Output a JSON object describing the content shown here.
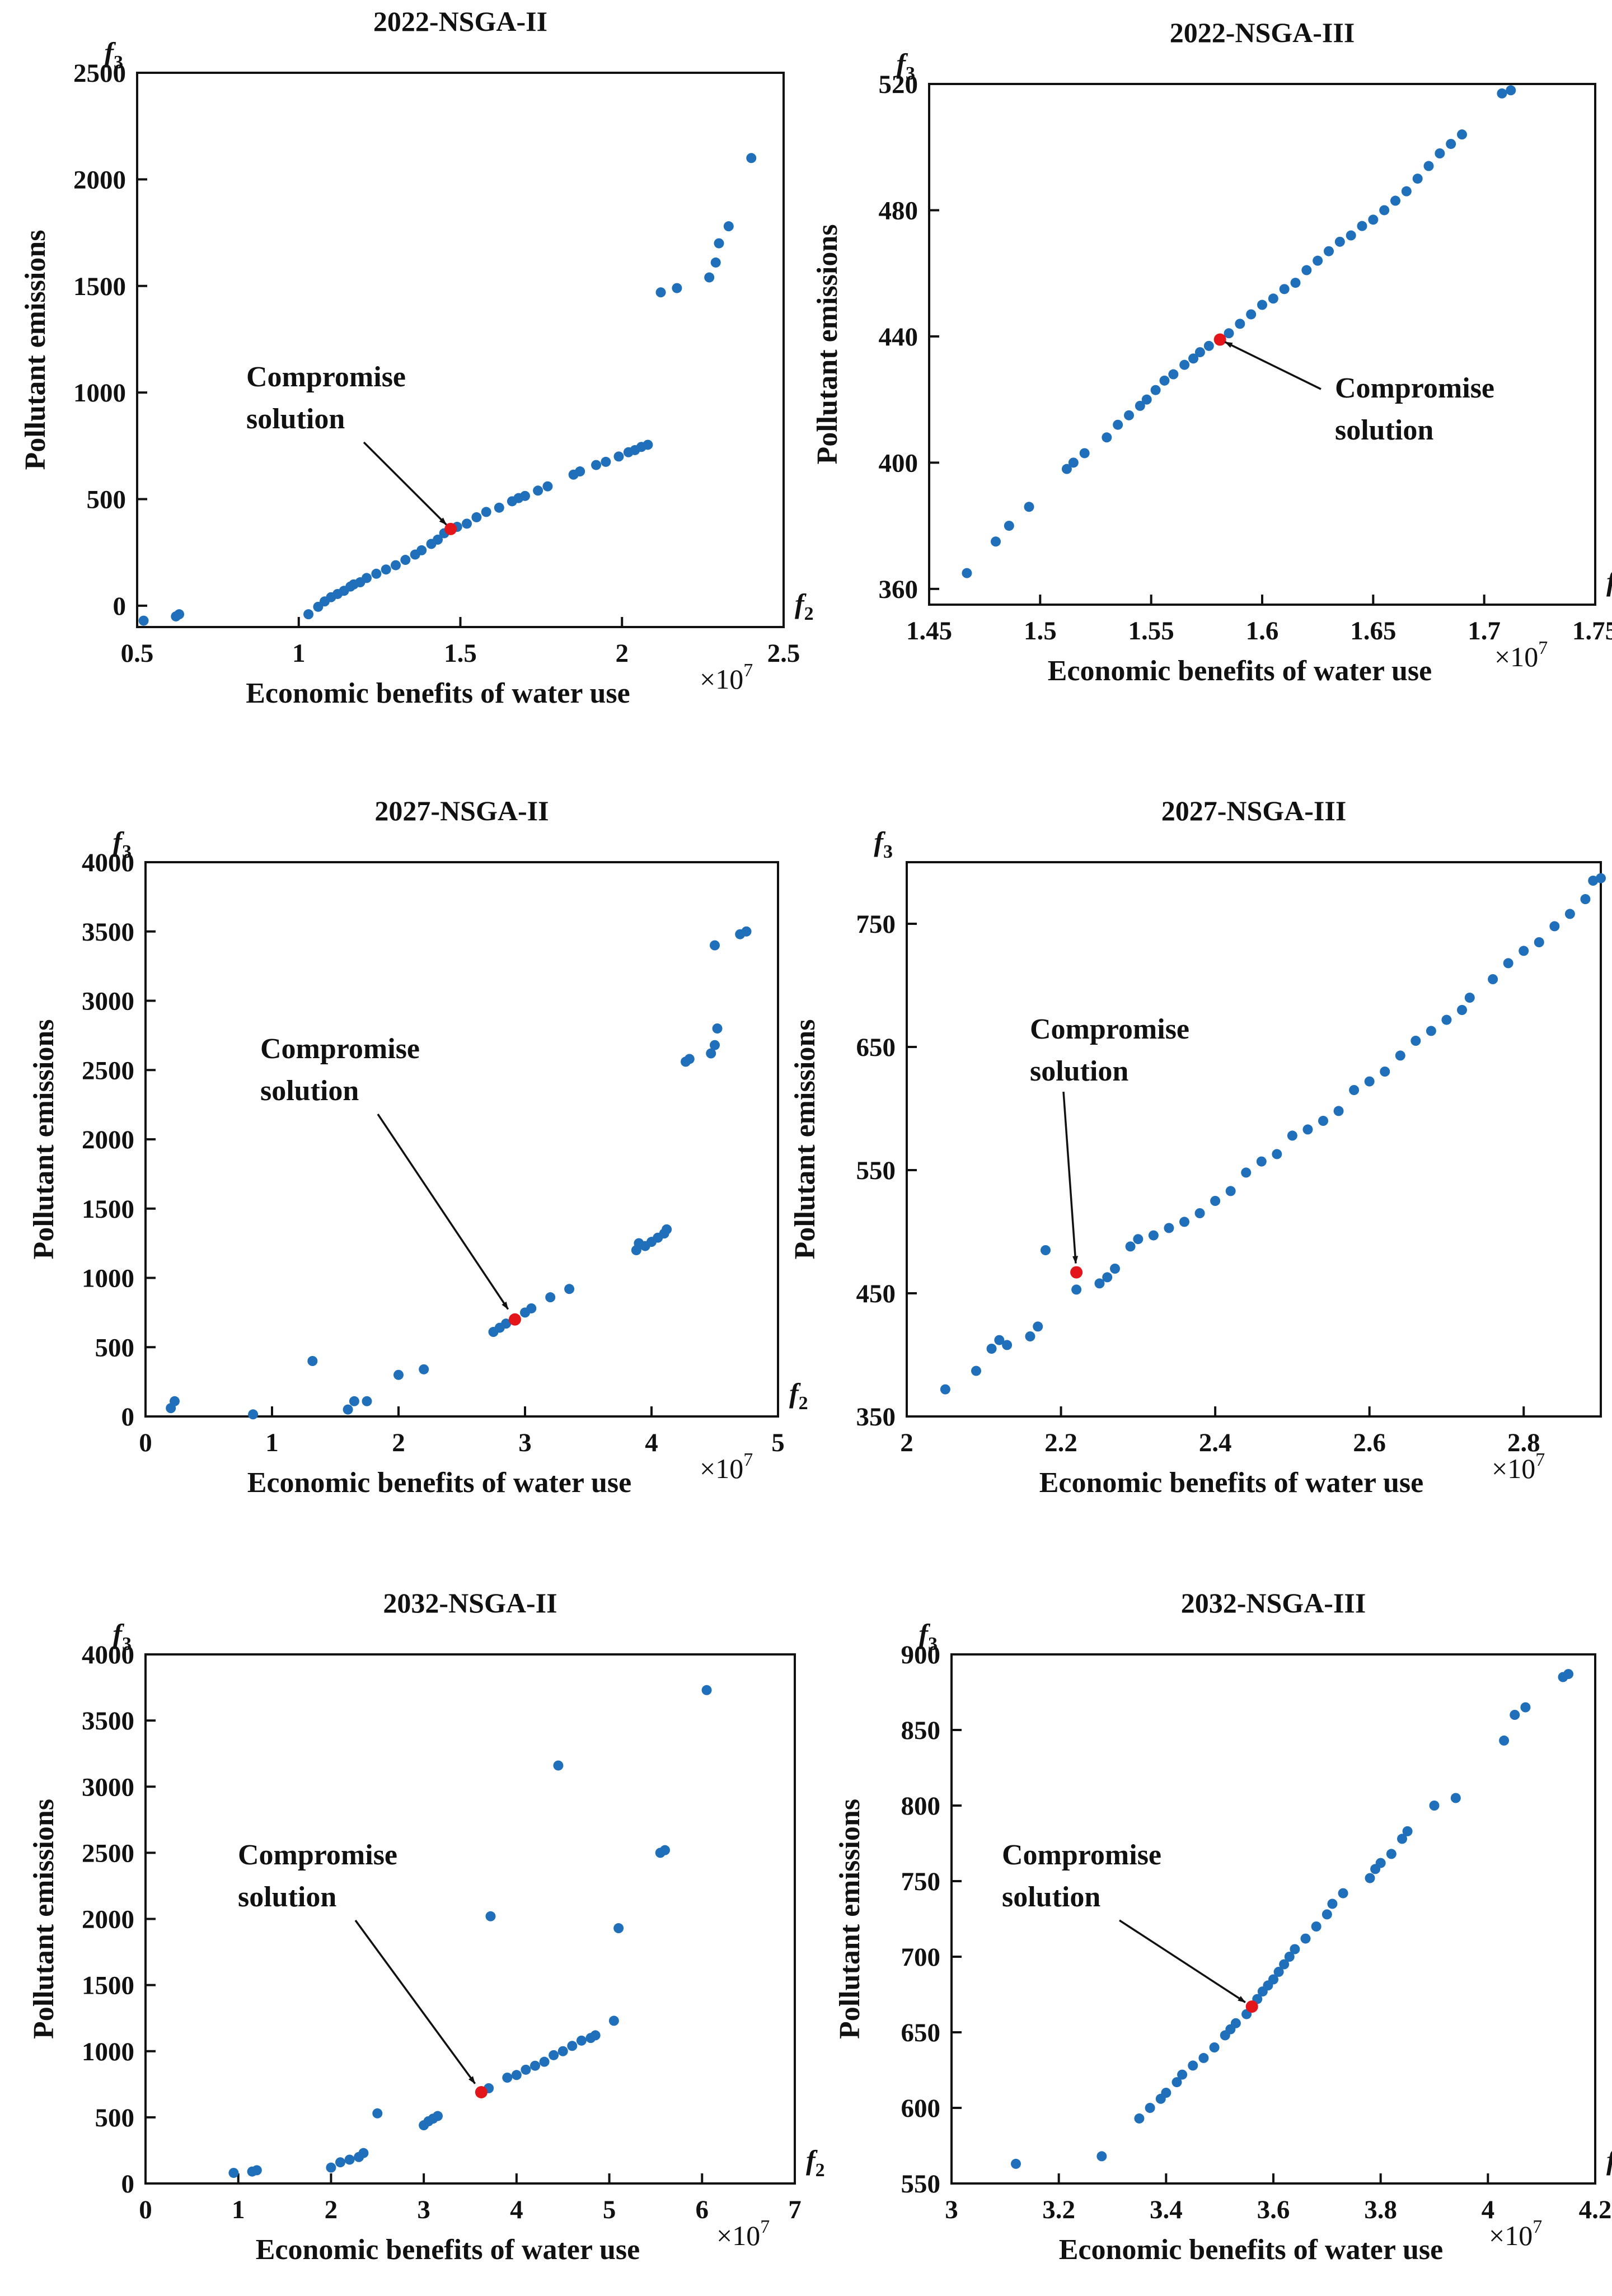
{
  "figure": {
    "x_var": "f",
    "x_sub": "2",
    "y_var": "f",
    "y_sub": "3",
    "x_multiplier": "×10",
    "x_multiplier_exp": "7",
    "colors": {
      "points": "#1f6fba",
      "compromise": "#e3161b",
      "axis": "#111111"
    }
  },
  "chart_data": [
    {
      "type": "scatter",
      "title": "2022-NSGA-II",
      "xlabel": "Economic benefits of water use",
      "ylabel": "Pollutant emissions",
      "xlim": [
        0.5,
        2.5
      ],
      "ylim": [
        -100,
        2500
      ],
      "xticks": [
        0.5,
        1,
        1.5,
        2,
        2.5
      ],
      "xtick_labels": [
        "0.5",
        "1",
        "1.5",
        "2",
        "2.5"
      ],
      "yticks": [
        0,
        500,
        1000,
        1500,
        2000,
        2500
      ],
      "ytick_labels": [
        "0",
        "500",
        "1000",
        "1500",
        "2000",
        "2500"
      ],
      "points": [
        [
          0.52,
          -70
        ],
        [
          0.62,
          -50
        ],
        [
          0.63,
          -40
        ],
        [
          1.03,
          -40
        ],
        [
          1.06,
          -5
        ],
        [
          1.08,
          20
        ],
        [
          1.1,
          40
        ],
        [
          1.12,
          55
        ],
        [
          1.14,
          70
        ],
        [
          1.16,
          90
        ],
        [
          1.17,
          100
        ],
        [
          1.19,
          110
        ],
        [
          1.21,
          130
        ],
        [
          1.24,
          150
        ],
        [
          1.27,
          170
        ],
        [
          1.3,
          190
        ],
        [
          1.33,
          215
        ],
        [
          1.36,
          240
        ],
        [
          1.38,
          260
        ],
        [
          1.41,
          290
        ],
        [
          1.43,
          310
        ],
        [
          1.45,
          340
        ],
        [
          1.49,
          370
        ],
        [
          1.52,
          385
        ],
        [
          1.55,
          415
        ],
        [
          1.58,
          440
        ],
        [
          1.62,
          460
        ],
        [
          1.66,
          490
        ],
        [
          1.68,
          505
        ],
        [
          1.7,
          515
        ],
        [
          1.74,
          540
        ],
        [
          1.77,
          560
        ],
        [
          1.85,
          615
        ],
        [
          1.87,
          630
        ],
        [
          1.92,
          660
        ],
        [
          1.95,
          675
        ],
        [
          1.99,
          700
        ],
        [
          2.02,
          720
        ],
        [
          2.04,
          730
        ],
        [
          2.06,
          745
        ],
        [
          2.08,
          755
        ],
        [
          2.12,
          1470
        ],
        [
          2.17,
          1490
        ],
        [
          2.27,
          1540
        ],
        [
          2.29,
          1610
        ],
        [
          2.3,
          1700
        ],
        [
          2.33,
          1780
        ],
        [
          2.4,
          2100
        ]
      ],
      "compromise": [
        1.47,
        360
      ],
      "annotation": [
        "Compromise",
        "solution"
      ]
    },
    {
      "type": "scatter",
      "title": "2022-NSGA-III",
      "xlabel": "Economic benefits of water use",
      "ylabel": "Pollutant emissions",
      "xlim": [
        1.45,
        1.75
      ],
      "ylim": [
        355,
        520
      ],
      "xticks": [
        1.45,
        1.5,
        1.55,
        1.6,
        1.65,
        1.7,
        1.75
      ],
      "xtick_labels": [
        "1.45",
        "1.5",
        "1.55",
        "1.6",
        "1.65",
        "1.7",
        "1.75"
      ],
      "yticks": [
        360,
        400,
        440,
        480,
        520
      ],
      "ytick_labels": [
        "360",
        "400",
        "440",
        "480",
        "520"
      ],
      "points": [
        [
          1.467,
          365
        ],
        [
          1.48,
          375
        ],
        [
          1.486,
          380
        ],
        [
          1.495,
          386
        ],
        [
          1.512,
          398
        ],
        [
          1.515,
          400
        ],
        [
          1.52,
          403
        ],
        [
          1.53,
          408
        ],
        [
          1.535,
          412
        ],
        [
          1.54,
          415
        ],
        [
          1.545,
          418
        ],
        [
          1.548,
          420
        ],
        [
          1.552,
          423
        ],
        [
          1.556,
          426
        ],
        [
          1.56,
          428
        ],
        [
          1.565,
          431
        ],
        [
          1.569,
          433
        ],
        [
          1.572,
          435
        ],
        [
          1.576,
          437
        ],
        [
          1.585,
          441
        ],
        [
          1.59,
          444
        ],
        [
          1.595,
          447
        ],
        [
          1.6,
          450
        ],
        [
          1.605,
          452
        ],
        [
          1.61,
          455
        ],
        [
          1.615,
          457
        ],
        [
          1.62,
          461
        ],
        [
          1.625,
          464
        ],
        [
          1.63,
          467
        ],
        [
          1.635,
          470
        ],
        [
          1.64,
          472
        ],
        [
          1.645,
          475
        ],
        [
          1.65,
          477
        ],
        [
          1.655,
          480
        ],
        [
          1.66,
          483
        ],
        [
          1.665,
          486
        ],
        [
          1.67,
          490
        ],
        [
          1.675,
          494
        ],
        [
          1.68,
          498
        ],
        [
          1.685,
          501
        ],
        [
          1.69,
          504
        ],
        [
          1.708,
          517
        ],
        [
          1.712,
          518
        ]
      ],
      "compromise": [
        1.581,
        439
      ],
      "annotation": [
        "Compromise",
        "solution"
      ]
    },
    {
      "type": "scatter",
      "title": "2027-NSGA-II",
      "xlabel": "Economic benefits of water use",
      "ylabel": "Pollutant emissions",
      "xlim": [
        0,
        5
      ],
      "ylim": [
        0,
        4000
      ],
      "xticks": [
        0,
        1,
        2,
        3,
        4,
        5
      ],
      "xtick_labels": [
        "0",
        "1",
        "2",
        "3",
        "4",
        "5"
      ],
      "yticks": [
        0,
        500,
        1000,
        1500,
        2000,
        2500,
        3000,
        3500,
        4000
      ],
      "ytick_labels": [
        "0",
        "500",
        "1000",
        "1500",
        "2000",
        "2500",
        "3000",
        "3500",
        "4000"
      ],
      "points": [
        [
          0.2,
          60
        ],
        [
          0.23,
          110
        ],
        [
          0.85,
          15
        ],
        [
          1.32,
          400
        ],
        [
          1.6,
          50
        ],
        [
          1.65,
          110
        ],
        [
          1.75,
          110
        ],
        [
          2.0,
          300
        ],
        [
          2.2,
          340
        ],
        [
          2.75,
          610
        ],
        [
          2.8,
          640
        ],
        [
          2.85,
          670
        ],
        [
          3.0,
          750
        ],
        [
          3.05,
          780
        ],
        [
          3.2,
          860
        ],
        [
          3.35,
          920
        ],
        [
          3.88,
          1200
        ],
        [
          3.9,
          1250
        ],
        [
          3.95,
          1230
        ],
        [
          4.0,
          1260
        ],
        [
          4.05,
          1290
        ],
        [
          4.1,
          1320
        ],
        [
          4.12,
          1350
        ],
        [
          4.27,
          2560
        ],
        [
          4.3,
          2580
        ],
        [
          4.47,
          2620
        ],
        [
          4.5,
          2680
        ],
        [
          4.52,
          2800
        ],
        [
          4.5,
          3400
        ],
        [
          4.7,
          3480
        ],
        [
          4.75,
          3500
        ]
      ],
      "compromise": [
        2.92,
        700
      ],
      "annotation": [
        "Compromise",
        "solution"
      ]
    },
    {
      "type": "scatter",
      "title": "2027-NSGA-III",
      "xlabel": "Economic benefits of water use",
      "ylabel": "Pollutant emissions",
      "xlim": [
        2.0,
        2.9
      ],
      "ylim": [
        350,
        800
      ],
      "xticks": [
        2.0,
        2.2,
        2.4,
        2.6,
        2.8
      ],
      "xtick_labels": [
        "2",
        "2.2",
        "2.4",
        "2.6",
        "2.8"
      ],
      "yticks": [
        350,
        450,
        550,
        650,
        750
      ],
      "ytick_labels": [
        "350",
        "450",
        "550",
        "650",
        "750"
      ],
      "points": [
        [
          2.05,
          372
        ],
        [
          2.09,
          387
        ],
        [
          2.11,
          405
        ],
        [
          2.12,
          412
        ],
        [
          2.13,
          408
        ],
        [
          2.16,
          415
        ],
        [
          2.17,
          423
        ],
        [
          2.18,
          485
        ],
        [
          2.22,
          453
        ],
        [
          2.25,
          458
        ],
        [
          2.26,
          463
        ],
        [
          2.27,
          470
        ],
        [
          2.29,
          488
        ],
        [
          2.3,
          494
        ],
        [
          2.32,
          497
        ],
        [
          2.34,
          503
        ],
        [
          2.36,
          508
        ],
        [
          2.38,
          515
        ],
        [
          2.4,
          525
        ],
        [
          2.42,
          533
        ],
        [
          2.44,
          548
        ],
        [
          2.46,
          557
        ],
        [
          2.48,
          563
        ],
        [
          2.5,
          578
        ],
        [
          2.52,
          583
        ],
        [
          2.54,
          590
        ],
        [
          2.56,
          598
        ],
        [
          2.58,
          615
        ],
        [
          2.6,
          622
        ],
        [
          2.62,
          630
        ],
        [
          2.64,
          643
        ],
        [
          2.66,
          655
        ],
        [
          2.68,
          663
        ],
        [
          2.7,
          672
        ],
        [
          2.72,
          680
        ],
        [
          2.73,
          690
        ],
        [
          2.76,
          705
        ],
        [
          2.78,
          718
        ],
        [
          2.8,
          728
        ],
        [
          2.82,
          735
        ],
        [
          2.84,
          748
        ],
        [
          2.86,
          758
        ],
        [
          2.88,
          770
        ],
        [
          2.89,
          785
        ],
        [
          2.9,
          787
        ]
      ],
      "compromise": [
        2.22,
        467
      ],
      "annotation": [
        "Compromise",
        "solution"
      ]
    },
    {
      "type": "scatter",
      "title": "2032-NSGA-II",
      "xlabel": "Economic benefits of water use",
      "ylabel": "Pollutant emissions",
      "xlim": [
        0,
        7
      ],
      "ylim": [
        0,
        4000
      ],
      "xticks": [
        0,
        1,
        2,
        3,
        4,
        5,
        6,
        7
      ],
      "xtick_labels": [
        "0",
        "1",
        "2",
        "3",
        "4",
        "5",
        "6",
        "7"
      ],
      "yticks": [
        0,
        500,
        1000,
        1500,
        2000,
        2500,
        3000,
        3500,
        4000
      ],
      "ytick_labels": [
        "0",
        "500",
        "1000",
        "1500",
        "2000",
        "2500",
        "3000",
        "3500",
        "4000"
      ],
      "points": [
        [
          0.95,
          80
        ],
        [
          1.15,
          90
        ],
        [
          1.2,
          100
        ],
        [
          2.0,
          120
        ],
        [
          2.1,
          160
        ],
        [
          2.2,
          180
        ],
        [
          2.3,
          200
        ],
        [
          2.35,
          230
        ],
        [
          2.5,
          530
        ],
        [
          3.0,
          440
        ],
        [
          3.05,
          470
        ],
        [
          3.1,
          490
        ],
        [
          3.15,
          510
        ],
        [
          3.7,
          720
        ],
        [
          3.72,
          2020
        ],
        [
          3.9,
          800
        ],
        [
          4.0,
          820
        ],
        [
          4.1,
          860
        ],
        [
          4.2,
          890
        ],
        [
          4.3,
          920
        ],
        [
          4.4,
          970
        ],
        [
          4.45,
          3160
        ],
        [
          4.5,
          1000
        ],
        [
          4.6,
          1040
        ],
        [
          4.7,
          1080
        ],
        [
          4.8,
          1100
        ],
        [
          4.85,
          1120
        ],
        [
          5.05,
          1230
        ],
        [
          5.1,
          1930
        ],
        [
          5.55,
          2500
        ],
        [
          5.6,
          2520
        ],
        [
          6.05,
          3730
        ]
      ],
      "compromise": [
        3.62,
        690
      ],
      "annotation": [
        "Compromise",
        "solution"
      ]
    },
    {
      "type": "scatter",
      "title": "2032-NSGA-III",
      "xlabel": "Economic benefits of water use",
      "ylabel": "Pollutant emissions",
      "xlim": [
        3.0,
        4.2
      ],
      "ylim": [
        550,
        900
      ],
      "xticks": [
        3.0,
        3.2,
        3.4,
        3.6,
        3.8,
        4.0,
        4.2
      ],
      "xtick_labels": [
        "3",
        "3.2",
        "3.4",
        "3.6",
        "3.8",
        "4",
        "4.2"
      ],
      "yticks": [
        550,
        600,
        650,
        700,
        750,
        800,
        850,
        900
      ],
      "ytick_labels": [
        "550",
        "600",
        "650",
        "700",
        "750",
        "800",
        "850",
        "900"
      ],
      "points": [
        [
          3.12,
          563
        ],
        [
          3.28,
          568
        ],
        [
          3.35,
          593
        ],
        [
          3.37,
          600
        ],
        [
          3.39,
          606
        ],
        [
          3.4,
          610
        ],
        [
          3.42,
          617
        ],
        [
          3.43,
          622
        ],
        [
          3.45,
          628
        ],
        [
          3.47,
          633
        ],
        [
          3.49,
          640
        ],
        [
          3.51,
          648
        ],
        [
          3.52,
          652
        ],
        [
          3.53,
          656
        ],
        [
          3.55,
          662
        ],
        [
          3.57,
          672
        ],
        [
          3.58,
          677
        ],
        [
          3.59,
          681
        ],
        [
          3.6,
          685
        ],
        [
          3.61,
          690
        ],
        [
          3.62,
          695
        ],
        [
          3.63,
          700
        ],
        [
          3.64,
          705
        ],
        [
          3.66,
          712
        ],
        [
          3.68,
          720
        ],
        [
          3.7,
          728
        ],
        [
          3.71,
          735
        ],
        [
          3.73,
          742
        ],
        [
          3.78,
          752
        ],
        [
          3.79,
          758
        ],
        [
          3.8,
          762
        ],
        [
          3.82,
          768
        ],
        [
          3.84,
          778
        ],
        [
          3.85,
          783
        ],
        [
          3.9,
          800
        ],
        [
          3.94,
          805
        ],
        [
          4.03,
          843
        ],
        [
          4.05,
          860
        ],
        [
          4.07,
          865
        ],
        [
          4.14,
          885
        ],
        [
          4.15,
          887
        ]
      ],
      "compromise": [
        3.56,
        667
      ],
      "annotation": [
        "Compromise",
        "solution"
      ]
    }
  ]
}
